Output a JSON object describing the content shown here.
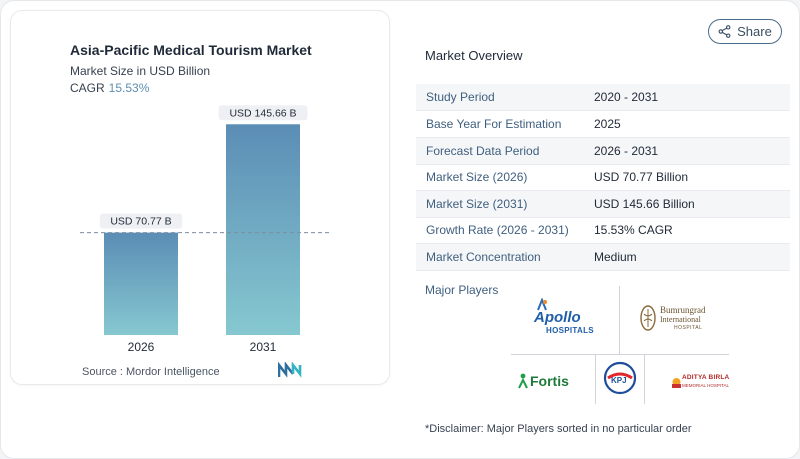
{
  "chart": {
    "title": "Asia-Pacific Medical Tourism Market",
    "subtitle": "Market Size in USD Billion",
    "cagr_label": "CAGR",
    "cagr_value": "15.53%",
    "source": "Source :  Mordor Intelligence"
  },
  "chart_data": {
    "type": "bar",
    "categories": [
      "2026",
      "2031"
    ],
    "values": [
      70.77,
      145.66
    ],
    "data_labels": [
      "USD 70.77 B",
      "USD 145.66 B"
    ],
    "title": "Asia-Pacific Medical Tourism Market",
    "subtitle": "Market Size in USD Billion",
    "ylim": [
      0,
      150
    ],
    "reference_line_at": 70.77,
    "grid": false,
    "colors": {
      "bar_top": "#5b8db5",
      "bar_bottom": "#86c8d0"
    }
  },
  "share": {
    "label": "Share",
    "icon": "share-icon"
  },
  "overview": {
    "title": "Market Overview",
    "rows": [
      {
        "label": "Study Period",
        "value": "2020 - 2031"
      },
      {
        "label": "Base Year For Estimation",
        "value": "2025"
      },
      {
        "label": "Forecast Data Period",
        "value": "2026 - 2031"
      },
      {
        "label": "Market Size (2026)",
        "value": "USD 70.77 Billion"
      },
      {
        "label": "Market Size (2031)",
        "value": "USD 145.66 Billion"
      },
      {
        "label": "Growth Rate (2026 - 2031)",
        "value": "15.53% CAGR"
      },
      {
        "label": "Market Concentration",
        "value": "Medium"
      }
    ]
  },
  "players": {
    "label": "Major Players",
    "logos": [
      {
        "name": "apollo",
        "line1": "Apollo",
        "line2": "HOSPITALS"
      },
      {
        "name": "bumrungrad",
        "line1": "Bumrungrad",
        "line2": "International",
        "line3": "HOSPITAL"
      },
      {
        "name": "fortis",
        "line1": "Fortis"
      },
      {
        "name": "kpj",
        "line1": "KPJ"
      },
      {
        "name": "aditya-birla",
        "line1": "ADITYA BIRLA",
        "line2": "MEMORIAL HOSPITAL"
      }
    ]
  },
  "disclaimer": "*Disclaimer: Major Players sorted in no particular order",
  "colors": {
    "accent": "#5d8fb0",
    "label_blue": "#3f5f7f"
  }
}
